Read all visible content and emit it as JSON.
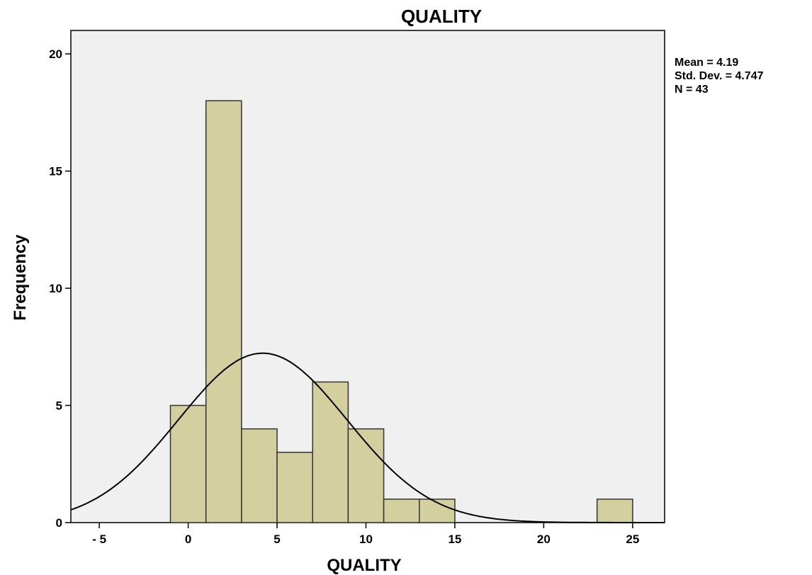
{
  "chart_data": {
    "type": "bar",
    "title": "QUALITY",
    "xlabel": "QUALITY",
    "ylabel": "Frequency",
    "xlim": [
      -6.6,
      26.8
    ],
    "ylim": [
      0,
      21
    ],
    "x_ticks": [
      "- 5",
      "0",
      "5",
      "10",
      "15",
      "20",
      "25"
    ],
    "x_tick_values": [
      -5,
      0,
      5,
      10,
      15,
      20,
      25
    ],
    "y_ticks": [
      "0",
      "5",
      "10",
      "15",
      "20"
    ],
    "y_tick_values": [
      0,
      5,
      10,
      15,
      20
    ],
    "bins": [
      {
        "start": -1,
        "end": 1,
        "count": 5
      },
      {
        "start": 1,
        "end": 3,
        "count": 18
      },
      {
        "start": 3,
        "end": 5,
        "count": 4
      },
      {
        "start": 5,
        "end": 7,
        "count": 3
      },
      {
        "start": 7,
        "end": 9,
        "count": 6
      },
      {
        "start": 9,
        "end": 11,
        "count": 4
      },
      {
        "start": 11,
        "end": 13,
        "count": 1
      },
      {
        "start": 13,
        "end": 15,
        "count": 1
      },
      {
        "start": 23,
        "end": 25,
        "count": 1
      }
    ],
    "normal_curve": {
      "mean": 4.19,
      "std_dev": 4.747,
      "n": 43,
      "bin_width": 2
    },
    "stats_text": [
      "Mean = 4.19",
      "Std. Dev. = 4.747",
      "N = 43"
    ],
    "grid": false,
    "colors": {
      "bar_fill": "#d3cf9f",
      "bar_stroke": "#333333",
      "plot_bg": "#f0f0f0",
      "curve": "#000000"
    }
  }
}
